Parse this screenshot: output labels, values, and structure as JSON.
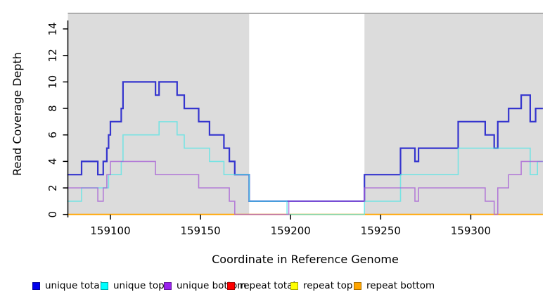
{
  "figure": {
    "xlabel": "Coordinate in Reference Genome",
    "ylabel": "Read Coverage Depth"
  },
  "chart_data": {
    "type": "line",
    "subtype": "step-coverage",
    "xlabel": "Coordinate in Reference Genome",
    "ylabel": "Read Coverage Depth",
    "xlim": [
      159076,
      159340
    ],
    "ylim": [
      0,
      15.2
    ],
    "x_ticks": [
      159100,
      159150,
      159200,
      159250,
      159300
    ],
    "y_ticks": [
      0,
      2,
      4,
      6,
      8,
      10,
      12,
      14
    ],
    "grid": false,
    "legend_position": "bottom",
    "plot_background": "#DCDCDC",
    "top_border_color": "#999999",
    "masked_region": {
      "start": 159177,
      "end": 159241,
      "fill": "#FFFFFF"
    },
    "x_end": 159340,
    "series": [
      {
        "name": "repeat total",
        "line_color": "#EE0000",
        "opacity": 1.0,
        "line_width": 1.4,
        "steps": [
          [
            159076,
            0
          ]
        ]
      },
      {
        "name": "repeat top",
        "line_color": "#FFFF00",
        "opacity": 1.0,
        "line_width": 1.4,
        "steps": [
          [
            159076,
            0
          ]
        ]
      },
      {
        "name": "repeat bottom",
        "line_color": "#FFA500",
        "opacity": 1.0,
        "line_width": 1.8,
        "steps": [
          [
            159076,
            0
          ]
        ]
      },
      {
        "name": "unique total",
        "line_color": "#2222CC",
        "opacity": 0.9,
        "line_width": 2.2,
        "steps": [
          [
            159076,
            3
          ],
          [
            159084,
            4
          ],
          [
            159093,
            3
          ],
          [
            159096,
            4
          ],
          [
            159098,
            5
          ],
          [
            159099,
            6
          ],
          [
            159100,
            7
          ],
          [
            159106,
            8
          ],
          [
            159107,
            10
          ],
          [
            159125,
            9
          ],
          [
            159127,
            10
          ],
          [
            159137,
            9
          ],
          [
            159141,
            8
          ],
          [
            159149,
            7
          ],
          [
            159155,
            6
          ],
          [
            159163,
            5
          ],
          [
            159166,
            4
          ],
          [
            159169,
            3
          ],
          [
            159177,
            1
          ],
          [
            159241,
            3
          ],
          [
            159261,
            5
          ],
          [
            159269,
            4
          ],
          [
            159271,
            5
          ],
          [
            159293,
            7
          ],
          [
            159308,
            6
          ],
          [
            159313,
            5
          ],
          [
            159315,
            7
          ],
          [
            159321,
            8
          ],
          [
            159328,
            9
          ],
          [
            159333,
            7
          ],
          [
            159336,
            8
          ]
        ]
      },
      {
        "name": "unique top",
        "line_color": "#55E6E6",
        "opacity": 0.75,
        "line_width": 1.6,
        "steps": [
          [
            159076,
            1
          ],
          [
            159084,
            2
          ],
          [
            159099,
            3
          ],
          [
            159106,
            4
          ],
          [
            159107,
            6
          ],
          [
            159127,
            7
          ],
          [
            159137,
            6
          ],
          [
            159141,
            5
          ],
          [
            159155,
            4
          ],
          [
            159163,
            3
          ],
          [
            159177,
            1
          ],
          [
            159198,
            0
          ],
          [
            159241,
            1
          ],
          [
            159261,
            3
          ],
          [
            159293,
            5
          ],
          [
            159333,
            3
          ],
          [
            159337,
            4
          ]
        ]
      },
      {
        "name": "unique bottom",
        "line_color": "#A65CD6",
        "opacity": 0.75,
        "line_width": 1.6,
        "steps": [
          [
            159076,
            2
          ],
          [
            159093,
            1
          ],
          [
            159096,
            2
          ],
          [
            159098,
            3
          ],
          [
            159100,
            4
          ],
          [
            159125,
            3
          ],
          [
            159149,
            2
          ],
          [
            159166,
            1
          ],
          [
            159169,
            0
          ],
          [
            159199,
            1
          ],
          [
            159241,
            2
          ],
          [
            159269,
            1
          ],
          [
            159271,
            2
          ],
          [
            159308,
            1
          ],
          [
            159313,
            0
          ],
          [
            159315,
            2
          ],
          [
            159321,
            3
          ],
          [
            159328,
            4
          ]
        ]
      }
    ]
  },
  "legend": {
    "items": [
      {
        "label": "unique total",
        "color": "#0000EE"
      },
      {
        "label": "unique top",
        "color": "#00FFFF"
      },
      {
        "label": "unique bottom",
        "color": "#9922EE"
      },
      {
        "label": "repeat total",
        "color": "#FF0000"
      },
      {
        "label": "repeat top",
        "color": "#FFFF00"
      },
      {
        "label": "repeat bottom",
        "color": "#FFA500"
      }
    ],
    "item_x_positions": [
      46,
      143,
      233,
      323,
      413,
      503
    ]
  }
}
